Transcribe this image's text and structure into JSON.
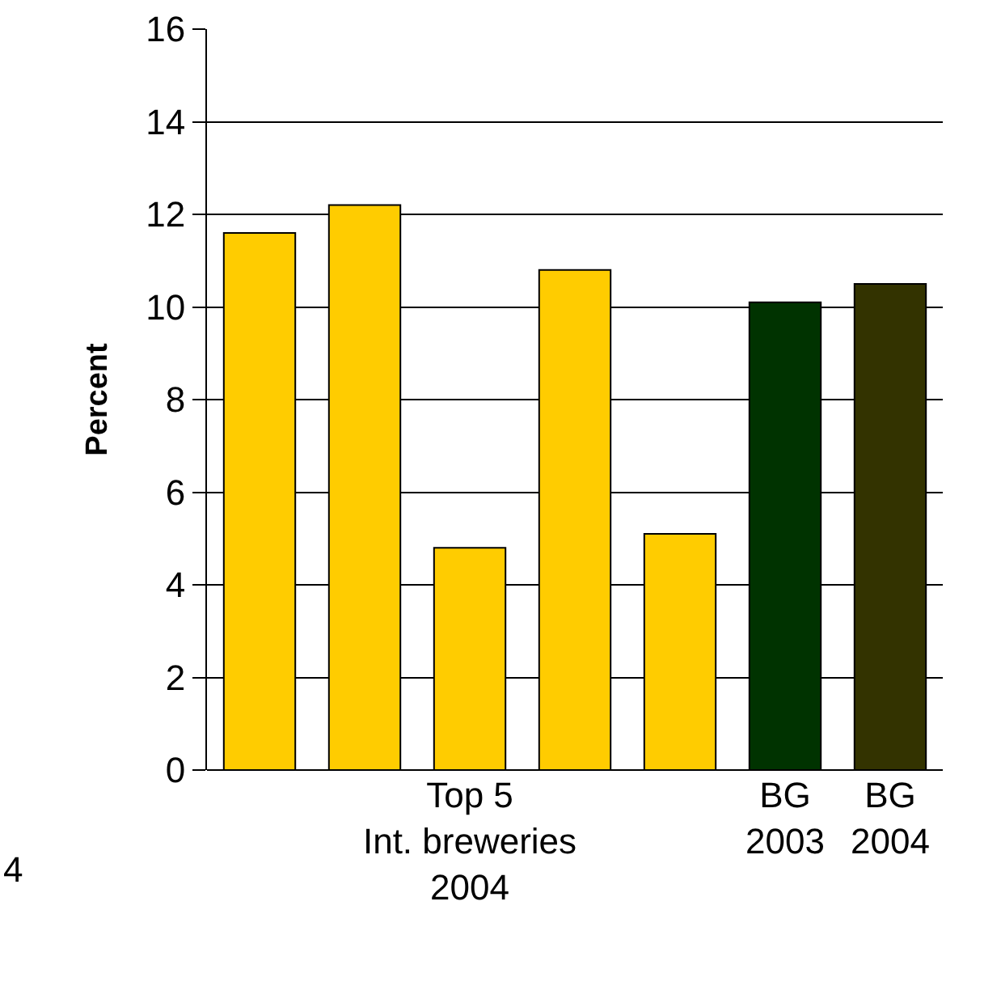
{
  "chart_data": {
    "type": "bar",
    "ylabel": "Percent",
    "categories": [
      null,
      null,
      "Top 5\nInt. breweries\n2004",
      null,
      null,
      "BG\n2003",
      "BG\n2004"
    ],
    "values": [
      11.6,
      12.2,
      4.8,
      10.8,
      5.1,
      10.1,
      10.5
    ],
    "colors": [
      "#ffcc00",
      "#ffcc00",
      "#ffcc00",
      "#ffcc00",
      "#ffcc00",
      "#003300",
      "#333300"
    ],
    "ylim": [
      0,
      16
    ],
    "yticks": [
      0,
      2,
      4,
      6,
      8,
      10,
      12,
      14,
      16
    ],
    "grid": "y",
    "annotations": [
      "4"
    ]
  }
}
